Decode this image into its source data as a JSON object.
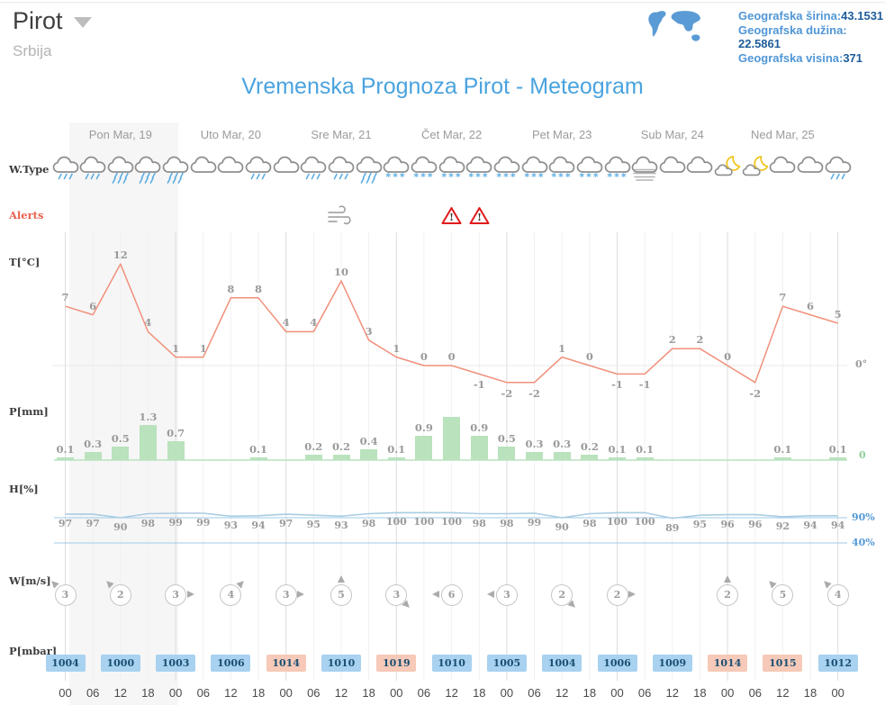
{
  "header": {
    "location": "Pirot",
    "country": "Srbija",
    "geo_rows": [
      {
        "label": "Geografska širina:",
        "value": "43.1531"
      },
      {
        "label": "Geografska dužina:",
        "value": "22.5861"
      },
      {
        "label": "Geografska visina:",
        "value": "371"
      }
    ]
  },
  "title": "Vremenska Prognoza Pirot - Meteogram",
  "row_labels": {
    "wtype": "W.Type",
    "alerts": "Alerts",
    "temp": "T[°C]",
    "precip": "P[mm]",
    "humidity": "H[%]",
    "wind": "W[m/s]",
    "pressure": "P[mbar]"
  },
  "axis_labels": {
    "temp_zero": "0°",
    "precip_zero": "0",
    "humidity_high": "90%",
    "humidity_low": "40%"
  },
  "colors": {
    "accent_blue": "#4aa3df",
    "temp_line": "#f1907b",
    "precip_bar": "#b9e2bd",
    "humidity_line": "#a9cce3",
    "humidity_ref_line": "#9fc9ea",
    "rain_blue": "#5dade2",
    "cloud_gray": "#8e8e8e",
    "moon_yellow": "#f0c419",
    "alert_red": "#e0191c",
    "pressure_low_bg": "#a8d2f0",
    "pressure_high_bg": "#f6c9b8",
    "pressure_text": "#1b4f72",
    "grid_day": "#dcdcdc",
    "grid_minor": "#f1f1f1"
  },
  "chart_data": {
    "type": "meteogram",
    "days": [
      "Pon Mar, 19",
      "Uto Mar, 20",
      "Sre Mar, 21",
      "Čet Mar, 22",
      "Pet Mar, 23",
      "Sub Mar, 24",
      "Ned Mar, 25"
    ],
    "hours": [
      "00",
      "06",
      "12",
      "18",
      "00",
      "06",
      "12",
      "18",
      "00",
      "06",
      "12",
      "18",
      "00",
      "06",
      "12",
      "18",
      "00",
      "06",
      "12",
      "18",
      "00",
      "06",
      "12",
      "18",
      "00",
      "06",
      "12",
      "18",
      "00"
    ],
    "weather_icons": [
      "rain",
      "rain",
      "rain-heavy",
      "rain-heavy",
      "rain-heavy",
      "cloud",
      "cloud",
      "rain",
      "cloud",
      "rain",
      "rain",
      "rain-heavy",
      "snow",
      "snow",
      "snow",
      "snow",
      "snow",
      "snow",
      "snow",
      "snow",
      "snow",
      "fog",
      "cloud",
      "cloud",
      "night-cloud",
      "night-cloud",
      "cloud",
      "cloud",
      "rain"
    ],
    "alerts": [
      {
        "slot": 10,
        "type": "wind"
      },
      {
        "slot": 14,
        "type": "warning"
      },
      {
        "slot": 15,
        "type": "warning"
      }
    ],
    "temperature_c": [
      7,
      6,
      12,
      4,
      1,
      1,
      8,
      8,
      4,
      4,
      10,
      3,
      1,
      0,
      0,
      -1,
      -2,
      -2,
      1,
      0,
      -1,
      -1,
      2,
      2,
      0,
      -2,
      7,
      6,
      5
    ],
    "precipitation_mm": [
      0.1,
      0.3,
      0.5,
      1.3,
      0.7,
      0,
      0,
      0.1,
      0,
      0.2,
      0.2,
      0.4,
      0.1,
      0.9,
      1.6,
      0.9,
      0.5,
      0.3,
      0.3,
      0.2,
      0.1,
      0.1,
      0,
      0,
      0,
      0,
      0.1,
      0,
      0.1
    ],
    "precipitation_labels": [
      "0.1",
      "0.3",
      "0.5",
      "1.3",
      "0.7",
      "",
      "",
      "0.1",
      "",
      "0.2",
      "0.2",
      "0.4",
      "0.1",
      "0.9",
      "",
      "0.9",
      "0.5",
      "0.3",
      "0.3",
      "0.2",
      "0.1",
      "0.1",
      "",
      "",
      "",
      "",
      "0.1",
      "",
      "0.1"
    ],
    "humidity_pct": [
      97,
      97,
      90,
      98,
      99,
      99,
      93,
      94,
      97,
      95,
      93,
      98,
      100,
      100,
      100,
      98,
      98,
      99,
      90,
      98,
      100,
      100,
      89,
      95,
      96,
      96,
      92,
      94,
      94
    ],
    "wind_markers": [
      {
        "slot": 0,
        "speed": 3,
        "dir": 315
      },
      {
        "slot": 2,
        "speed": 2,
        "dir": 315
      },
      {
        "slot": 4,
        "speed": 3,
        "dir": 90
      },
      {
        "slot": 6,
        "speed": 4,
        "dir": 45
      },
      {
        "slot": 8,
        "speed": 3,
        "dir": 90
      },
      {
        "slot": 10,
        "speed": 5,
        "dir": 0
      },
      {
        "slot": 12,
        "speed": 3,
        "dir": 135
      },
      {
        "slot": 14,
        "speed": 6,
        "dir": 270
      },
      {
        "slot": 16,
        "speed": 3,
        "dir": 270
      },
      {
        "slot": 18,
        "speed": 2,
        "dir": 135
      },
      {
        "slot": 20,
        "speed": 2,
        "dir": 90
      },
      {
        "slot": 24,
        "speed": 2,
        "dir": 0
      },
      {
        "slot": 26,
        "speed": 5,
        "dir": 315
      },
      {
        "slot": 28,
        "speed": 4,
        "dir": 315
      }
    ],
    "pressure_mbar": [
      {
        "slot": 0,
        "value": 1004,
        "level": "low"
      },
      {
        "slot": 2,
        "value": 1000,
        "level": "low"
      },
      {
        "slot": 4,
        "value": 1003,
        "level": "low"
      },
      {
        "slot": 6,
        "value": 1006,
        "level": "low"
      },
      {
        "slot": 8,
        "value": 1014,
        "level": "high"
      },
      {
        "slot": 10,
        "value": 1010,
        "level": "low"
      },
      {
        "slot": 12,
        "value": 1019,
        "level": "high"
      },
      {
        "slot": 14,
        "value": 1010,
        "level": "low"
      },
      {
        "slot": 16,
        "value": 1005,
        "level": "low"
      },
      {
        "slot": 18,
        "value": 1004,
        "level": "low"
      },
      {
        "slot": 20,
        "value": 1006,
        "level": "low"
      },
      {
        "slot": 22,
        "value": 1009,
        "level": "low"
      },
      {
        "slot": 24,
        "value": 1014,
        "level": "high"
      },
      {
        "slot": 26,
        "value": 1015,
        "level": "high"
      },
      {
        "slot": 28,
        "value": 1012,
        "level": "low"
      }
    ],
    "temp_axis": {
      "zero_line": 0
    },
    "humidity_axis": {
      "ref_high": 90,
      "ref_low": 40
    },
    "grid": true
  }
}
